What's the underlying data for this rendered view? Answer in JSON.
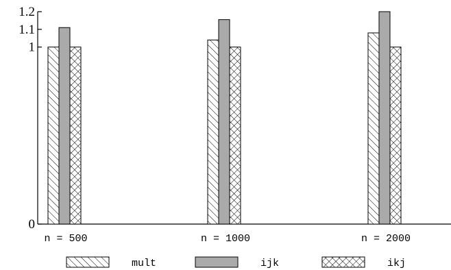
{
  "chart_data": {
    "type": "bar",
    "categories": [
      "n = 500",
      "n = 1000",
      "n = 2000"
    ],
    "series": [
      {
        "name": "mult",
        "values": [
          1.0,
          1.04,
          1.08
        ],
        "pattern": "diagonal-hatch"
      },
      {
        "name": "ijk",
        "values": [
          1.11,
          1.155,
          1.2
        ],
        "pattern": "solid-gray",
        "color": "#aaaaaa"
      },
      {
        "name": "ikj",
        "values": [
          1.0,
          1.0,
          1.0
        ],
        "pattern": "crosshatch"
      }
    ],
    "ylim": [
      0,
      1.2
    ],
    "yticks": [
      {
        "value": 0,
        "label": "0"
      },
      {
        "value": 1,
        "label": "1"
      },
      {
        "value": 1.1,
        "label": "1.1"
      },
      {
        "value": 1.2,
        "label": "1.2"
      }
    ],
    "title": "",
    "xlabel": "",
    "ylabel": "",
    "grid": false,
    "legend": "bottom"
  }
}
